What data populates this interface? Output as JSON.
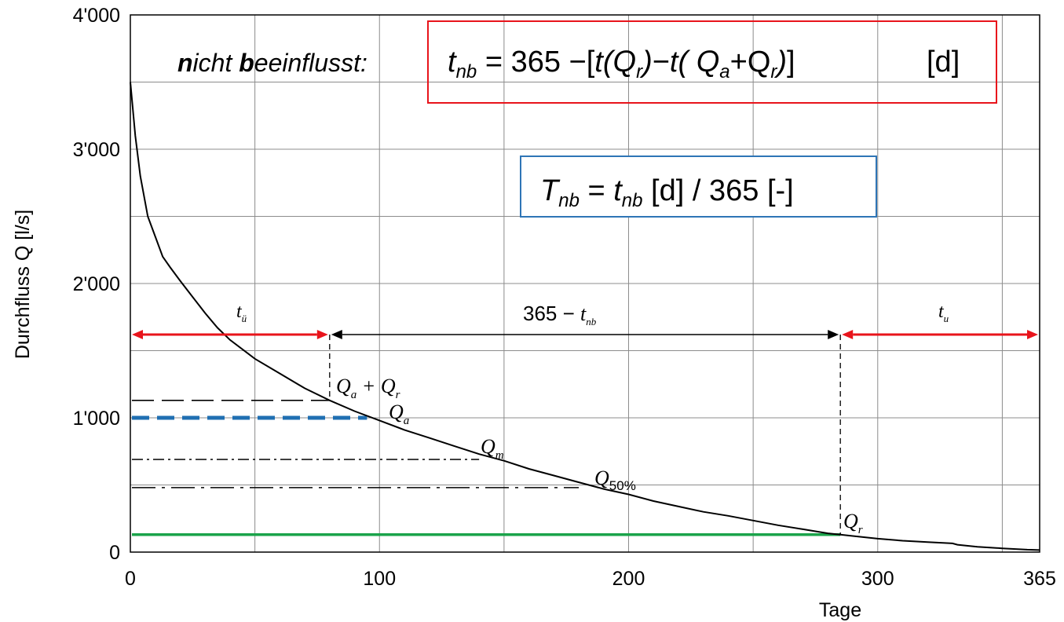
{
  "chart_data": {
    "type": "line",
    "xlabel": "Tage",
    "ylabel": "Durchfluss Q [l/s]",
    "xlim": [
      0,
      365
    ],
    "ylim": [
      0,
      4000
    ],
    "x_ticks": [
      {
        "value": 0,
        "label": "0"
      },
      {
        "value": 100,
        "label": "100"
      },
      {
        "value": 200,
        "label": "200"
      },
      {
        "value": 300,
        "label": "300"
      },
      {
        "value": 365,
        "label": "365"
      }
    ],
    "y_ticks": [
      {
        "value": 0,
        "label": "0"
      },
      {
        "value": 1000,
        "label": "1'000"
      },
      {
        "value": 2000,
        "label": "2'000"
      },
      {
        "value": 3000,
        "label": "3'000"
      },
      {
        "value": 4000,
        "label": "4'000"
      }
    ],
    "grid": true,
    "series": [
      {
        "color": "#000000",
        "x": [
          0,
          2,
          4,
          7,
          10,
          13,
          16,
          20,
          25,
          30,
          35,
          40,
          45,
          50,
          60,
          70,
          80,
          90,
          100,
          110,
          120,
          130,
          140,
          150,
          160,
          170,
          180,
          190,
          200,
          210,
          220,
          230,
          240,
          250,
          260,
          270,
          280,
          285,
          290,
          300,
          310,
          320,
          330,
          332,
          340,
          350,
          360,
          365
        ],
        "y": [
          3500,
          3100,
          2800,
          2500,
          2350,
          2200,
          2120,
          2020,
          1900,
          1780,
          1670,
          1580,
          1510,
          1440,
          1330,
          1220,
          1130,
          1050,
          980,
          910,
          850,
          790,
          730,
          680,
          620,
          570,
          520,
          470,
          430,
          380,
          340,
          300,
          270,
          235,
          200,
          170,
          140,
          130,
          120,
          100,
          85,
          75,
          65,
          55,
          40,
          28,
          18,
          15
        ]
      }
    ],
    "reference_lines": [
      {
        "name": "Qa+Qr",
        "y": 1130,
        "x_end": 80,
        "color": "#000000",
        "style": "long-dash"
      },
      {
        "name": "Qa",
        "y": 1000,
        "x_end": 95,
        "color": "#1f6fb2",
        "style": "dash-thick"
      },
      {
        "name": "Qm",
        "y": 690,
        "x_end": 140,
        "color": "#000000",
        "style": "dash-dot"
      },
      {
        "name": "Q50%",
        "y": 480,
        "x_end": 180,
        "color": "#000000",
        "style": "long-dash-dot"
      },
      {
        "name": "Qr",
        "y": 130,
        "x_end": 285,
        "color": "#1aa34a",
        "style": "solid-thick"
      }
    ],
    "vertical_markers": [
      {
        "x": 80,
        "y_top": 1620,
        "y_bottom": 1130
      },
      {
        "x": 285,
        "y_top": 1620,
        "y_bottom": 130
      }
    ],
    "span_arrows": [
      {
        "x_start": 0,
        "x_end": 80,
        "y": 1620,
        "color": "#e8141b",
        "label_sym": "t",
        "label_sub": "ü"
      },
      {
        "x_start": 80,
        "x_end": 285,
        "y": 1620,
        "color": "#000000",
        "label_pre": "365 − ",
        "label_sym": "t",
        "label_sub": "nb"
      },
      {
        "x_start": 285,
        "x_end": 365,
        "y": 1620,
        "color": "#e8141b",
        "label_sym": "t",
        "label_sub": "u"
      }
    ],
    "annotations": [
      {
        "id": "qa_qr",
        "text_main": "Q",
        "text_sub": "a",
        "text_mid": " + Q",
        "text_sub2": "r"
      },
      {
        "id": "qa",
        "text_main": "Q",
        "text_sub": "a"
      },
      {
        "id": "qm",
        "text_main": "Q",
        "text_sub": "m"
      },
      {
        "id": "q50",
        "text_main": "Q",
        "text_sub": "50%"
      },
      {
        "id": "qr",
        "text_main": "Q",
        "text_sub": "r"
      }
    ]
  },
  "formula_box_red": {
    "border_color": "#e8141b",
    "lead_bold_1": "n",
    "lead_rest_1": "icht ",
    "lead_bold_2": "b",
    "lead_rest_2": "eeinflusst:",
    "lhs": "t",
    "lhs_sub": "nb",
    "eq_part1": " = 365 −[",
    "t1": "t",
    "paren1": "(Q",
    "sub_r1": "r",
    "close1": ")",
    "minus": "−",
    "t2": "t",
    "paren2": "( Q",
    "sub_a": "a",
    "plus": "+Q",
    "sub_r2": "r",
    "close2": ")",
    "bracket": "]",
    "unit": "[d]"
  },
  "formula_box_blue": {
    "border_color": "#2e75b6",
    "lhs": "T",
    "lhs_sub": "nb",
    "eq": " = ",
    "rhs": "t",
    "rhs_sub": "nb",
    "rest": " [d] / 365 [-]"
  }
}
